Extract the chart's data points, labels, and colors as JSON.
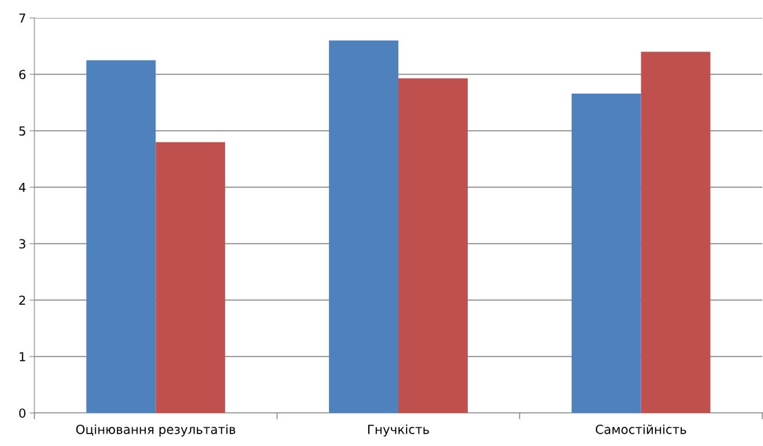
{
  "chart_data": {
    "type": "bar",
    "categories": [
      "Оцінювання результатів",
      "Гнучкість",
      "Самостійність"
    ],
    "series": [
      {
        "color": "#4f81bd",
        "values": [
          6.25,
          6.6,
          5.66
        ]
      },
      {
        "color": "#c0504d",
        "values": [
          4.8,
          5.93,
          6.4
        ]
      }
    ],
    "ylim": [
      0,
      7
    ],
    "yticks": [
      0,
      1,
      2,
      3,
      4,
      5,
      6,
      7
    ],
    "grid": "y",
    "legend": false
  }
}
